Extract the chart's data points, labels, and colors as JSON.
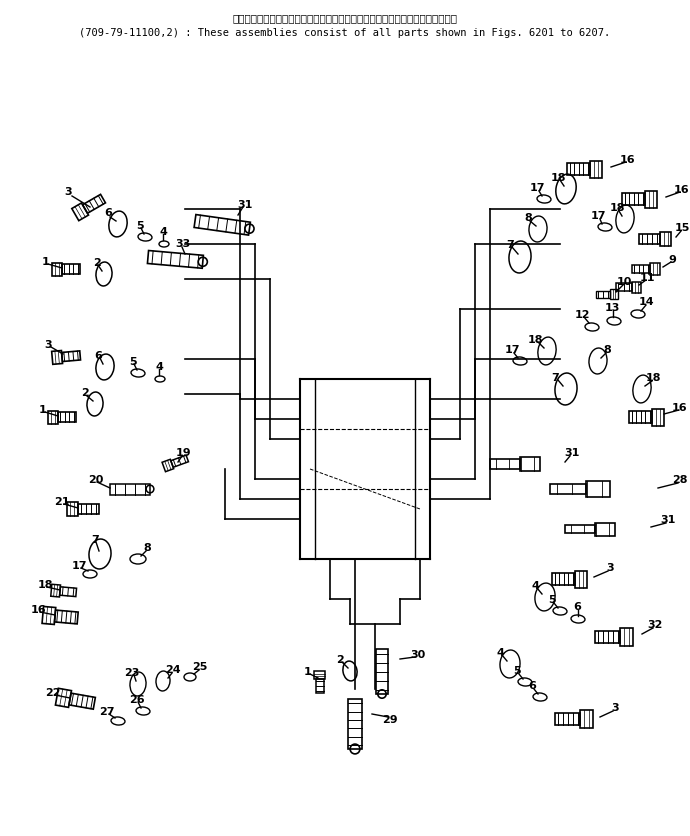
{
  "title_line1": "これらのアセンブリの構成部品は第６２０１図から第６２０７図まで含みます．",
  "title_line2": "(709-79-11100,2) : These assemblies consist of all parts shown in Figs. 6201 to 6207.",
  "bg_color": "#ffffff",
  "line_color": "#000000",
  "text_color": "#000000",
  "fig_width": 6.9,
  "fig_height": 8.37,
  "dpi": 100
}
